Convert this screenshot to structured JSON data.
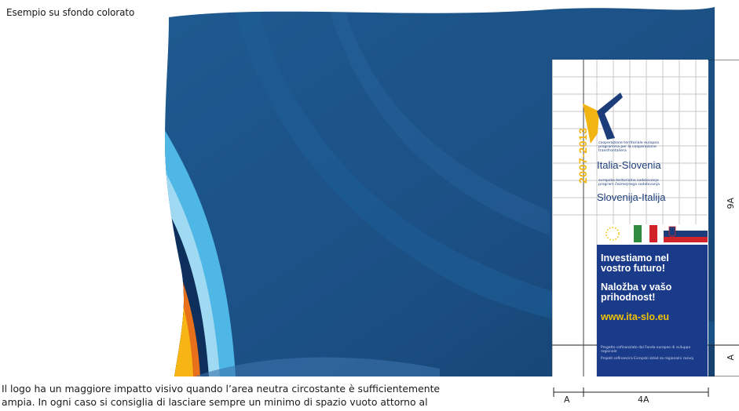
{
  "caption": "Esempio su sfondo colorato",
  "logo": {
    "years": "2007-2013",
    "program_it_lines": [
      "cooperazione territoriale europea",
      "programma per la cooperazione",
      "transfrontaliera"
    ],
    "title_it": "Italia-Slovenia",
    "program_sl_lines": [
      "evropsko teritorialno sodelovanje",
      "program čezmejnega sodelovanja"
    ],
    "title_sl": "Slovenija-Italija",
    "slogan_it_lines": [
      "Investiamo nel",
      "vostro futuro!"
    ],
    "slogan_sl_lines": [
      "Naložba v vašo",
      "prihodnost!"
    ],
    "website": "www.ita-slo.eu",
    "fine_it": "Progetto cofinanziato dal Fondo europeo di sviluppo regionale",
    "fine_sl": "Projekt sofinancira Evropski sklad za regionalni razvoj"
  },
  "dimensions": {
    "height_main": "9A",
    "height_small": "A",
    "width_a": "A",
    "width_4a": "4A"
  },
  "body_text_lines": [
    "Il logo ha un maggiore impatto visivo quando l’area neutra circostante è sufficientemente",
    "ampia. In ogni caso  si consiglia di lasciare sempre un minimo di spazio vuoto attorno al"
  ],
  "colors": {
    "navy": "#1b4f84",
    "deep_navy": "#0e2f5c",
    "logo_blue": "#1a3a8a",
    "logo_yellow": "#f2b411",
    "flag_green": "#2e8b3e",
    "flag_red": "#d2232a",
    "orange": "#e8701a",
    "gold": "#f6b514",
    "cyan": "#4fb7e6"
  }
}
